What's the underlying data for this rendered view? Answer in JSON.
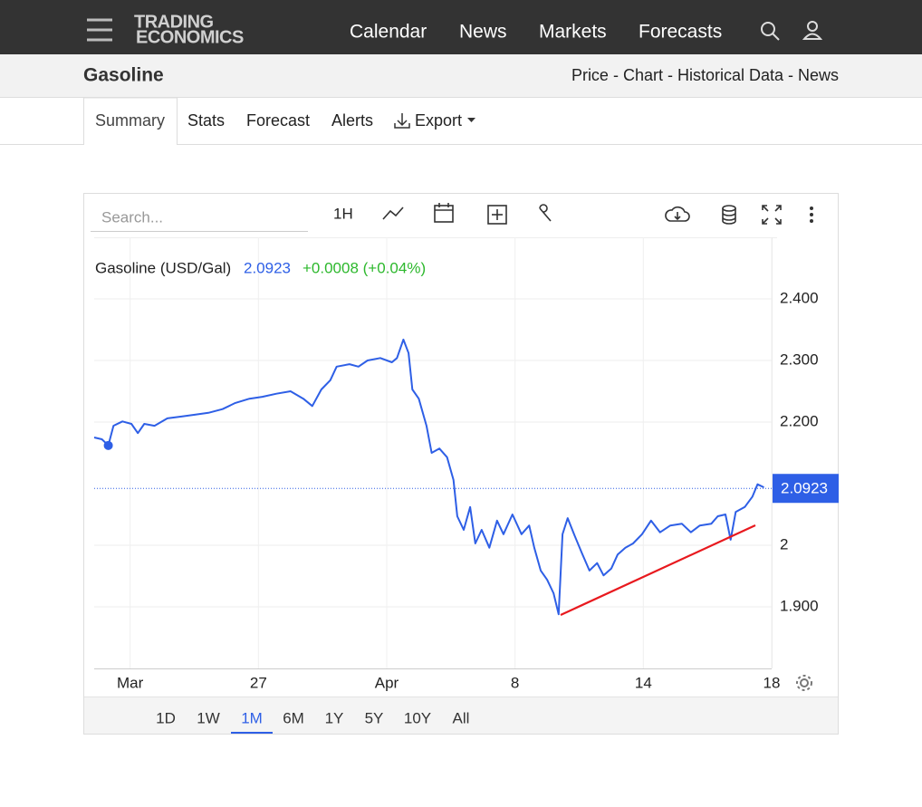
{
  "header": {
    "logo_line1": "TRADING",
    "logo_line2": "ECONOMICS",
    "nav": [
      "Calendar",
      "News",
      "Markets",
      "Forecasts"
    ]
  },
  "subheader": {
    "title": "Gasoline",
    "links": "Price - Chart - Historical Data - News"
  },
  "tabs": [
    "Summary",
    "Stats",
    "Forecast",
    "Alerts",
    "Export"
  ],
  "toolbar": {
    "search_placeholder": "Search...",
    "interval": "1H"
  },
  "range_buttons": [
    "1D",
    "1W",
    "1M",
    "6M",
    "1Y",
    "5Y",
    "10Y",
    "All"
  ],
  "selected_range_index": 2,
  "chart_data": {
    "type": "line",
    "x": [
      0.72,
      0.78,
      0.83,
      0.87,
      0.94,
      1.01,
      1.06,
      1.11,
      1.19,
      1.29,
      1.4,
      1.51,
      1.61,
      1.72,
      1.82,
      1.93,
      2.03,
      2.14,
      2.25,
      2.35,
      2.42,
      2.49,
      2.56,
      2.61,
      2.71,
      2.78,
      2.85,
      2.95,
      3.04,
      3.08,
      3.13,
      3.17,
      3.2,
      3.25,
      3.31,
      3.35,
      3.41,
      3.47,
      3.52,
      3.55,
      3.6,
      3.65,
      3.69,
      3.74,
      3.8,
      3.86,
      3.91,
      3.98,
      4.05,
      4.11,
      4.15,
      4.2,
      4.25,
      4.3,
      4.34,
      4.37,
      4.41,
      4.46,
      4.52,
      4.58,
      4.64,
      4.69,
      4.75,
      4.8,
      4.86,
      4.92,
      4.99,
      5.06,
      5.13,
      5.21,
      5.3,
      5.37,
      5.44,
      5.53,
      5.58,
      5.64,
      5.68,
      5.72,
      5.79,
      5.85,
      5.89,
      5.94
    ],
    "series": [
      {
        "name": "Gasoline (USD/Gal)",
        "color": "#2e5fe6",
        "values": [
          2.175,
          2.172,
          2.162,
          2.194,
          2.201,
          2.197,
          2.182,
          2.197,
          2.194,
          2.206,
          2.209,
          2.212,
          2.215,
          2.221,
          2.231,
          2.238,
          2.241,
          2.246,
          2.25,
          2.238,
          2.226,
          2.253,
          2.268,
          2.29,
          2.294,
          2.29,
          2.3,
          2.304,
          2.297,
          2.304,
          2.334,
          2.312,
          2.253,
          2.238,
          2.194,
          2.15,
          2.157,
          2.143,
          2.106,
          2.047,
          2.025,
          2.062,
          2.003,
          2.025,
          1.996,
          2.04,
          2.018,
          2.05,
          2.018,
          2.032,
          1.996,
          1.959,
          1.944,
          1.922,
          1.888,
          2.018,
          2.044,
          2.018,
          1.988,
          1.959,
          1.971,
          1.951,
          1.962,
          1.985,
          1.996,
          2.003,
          2.018,
          2.04,
          2.021,
          2.032,
          2.035,
          2.021,
          2.032,
          2.035,
          2.047,
          2.05,
          2.009,
          2.054,
          2.062,
          2.079,
          2.099,
          2.094
        ]
      }
    ],
    "last_value": 2.0923,
    "change": "+0.0008 (+0.04%)",
    "change_color": "#2db82d",
    "ylim": [
      1.8,
      2.5
    ],
    "yticks": [
      {
        "value": 1.9,
        "label": "1.900"
      },
      2,
      {
        "value": 2.2,
        "label": "2.200"
      },
      {
        "value": 2.3,
        "label": "2.300"
      },
      {
        "value": 2.4,
        "label": "2.400"
      }
    ],
    "xlim": [
      0.72,
      6.0
    ],
    "xticks": [
      {
        "value": 1,
        "label": "Mar"
      },
      {
        "value": 2,
        "label": "27"
      },
      {
        "value": 3,
        "label": "Apr"
      },
      {
        "value": 4,
        "label": "8"
      },
      {
        "value": 5,
        "label": "14"
      },
      {
        "value": 6,
        "label": "18"
      }
    ],
    "grid": true
  }
}
